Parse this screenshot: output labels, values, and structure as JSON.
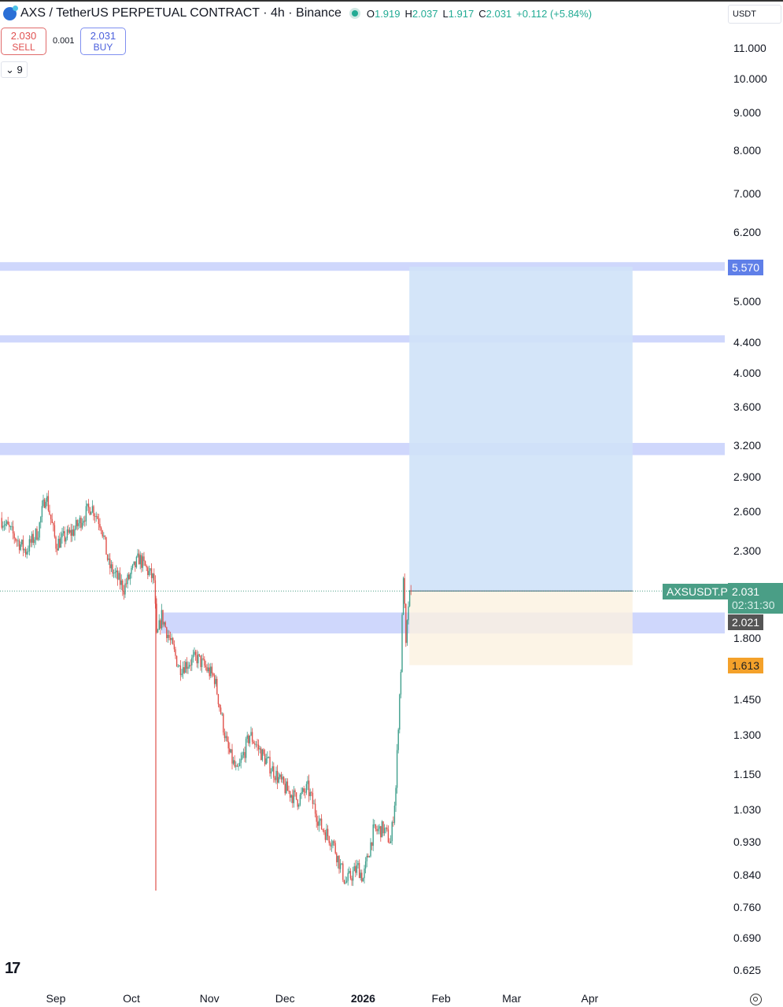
{
  "header": {
    "title": "AXS / TetherUS PERPETUAL CONTRACT · 4h · Binance",
    "open_label": "O",
    "open": "1.919",
    "high_label": "H",
    "high": "2.037",
    "low_label": "L",
    "low": "1.917",
    "close_label": "C",
    "close": "2.031",
    "change": "+0.112 (+5.84%)"
  },
  "trade": {
    "sell_price": "2.030",
    "sell_label": "SELL",
    "spread": "0.001",
    "buy_price": "2.031",
    "buy_label": "BUY"
  },
  "indicators": {
    "count": "9"
  },
  "currency": "USDT",
  "price_axis": {
    "scale": "log",
    "labels": [
      "11.000",
      "10.000",
      "9.000",
      "8.000",
      "7.000",
      "6.200",
      "5.000",
      "4.400",
      "4.000",
      "3.600",
      "3.200",
      "2.900",
      "2.600",
      "2.300",
      "1.800",
      "1.450",
      "1.300",
      "1.150",
      "1.030",
      "0.930",
      "0.840",
      "0.760",
      "0.690",
      "0.625"
    ]
  },
  "time_axis": {
    "labels": [
      "Sep",
      "Oct",
      "Nov",
      "Dec",
      "2026",
      "Feb",
      "Mar",
      "Apr"
    ]
  },
  "tags": {
    "symbol": "AXSUSDT.P",
    "last_price": "2.031",
    "countdown": "02:31:30",
    "crosshair_price": "2.021",
    "target": "5.570",
    "stop": "1.613"
  },
  "colors": {
    "up": "#3f9f8c",
    "down": "#e0504a",
    "zone": "#c7d0fb",
    "profit": "#cfe2f8",
    "loss": "#fbf1e0",
    "last": "#4a9e86",
    "stop": "#f4a12a"
  },
  "chart_data": {
    "type": "candlestick",
    "timeframe": "4h",
    "yscale": "log",
    "ylim": [
      0.625,
      11.0
    ],
    "path": [
      [
        "2025-08-10",
        2.55
      ],
      [
        "2025-08-15",
        2.42
      ],
      [
        "2025-08-20",
        2.3
      ],
      [
        "2025-08-25",
        2.45
      ],
      [
        "2025-08-28",
        2.75
      ],
      [
        "2025-09-01",
        2.35
      ],
      [
        "2025-09-08",
        2.45
      ],
      [
        "2025-09-15",
        2.65
      ],
      [
        "2025-09-19",
        2.5
      ],
      [
        "2025-09-22",
        2.2
      ],
      [
        "2025-09-28",
        2.05
      ],
      [
        "2025-10-04",
        2.25
      ],
      [
        "2025-10-10",
        2.1
      ],
      [
        "2025-10-11",
        1.75
      ],
      [
        "2025-10-13",
        1.88
      ],
      [
        "2025-10-20",
        1.6
      ],
      [
        "2025-10-27",
        1.65
      ],
      [
        "2025-11-03",
        1.55
      ],
      [
        "2025-11-08",
        1.25
      ],
      [
        "2025-11-12",
        1.15
      ],
      [
        "2025-11-17",
        1.3
      ],
      [
        "2025-11-22",
        1.22
      ],
      [
        "2025-12-01",
        1.1
      ],
      [
        "2025-12-06",
        1.06
      ],
      [
        "2025-12-10",
        1.1
      ],
      [
        "2025-12-15",
        0.98
      ],
      [
        "2025-12-20",
        0.93
      ],
      [
        "2025-12-25",
        0.82
      ],
      [
        "2025-12-30",
        0.86
      ],
      [
        "2026-01-01",
        0.83
      ],
      [
        "2026-01-05",
        0.96
      ],
      [
        "2026-01-09",
        0.97
      ],
      [
        "2026-01-12",
        0.93
      ],
      [
        "2026-01-14",
        1.1
      ],
      [
        "2026-01-15",
        1.35
      ],
      [
        "2026-01-16",
        1.6
      ],
      [
        "2026-01-17",
        2.15
      ],
      [
        "2026-01-18",
        1.7
      ],
      [
        "2026-01-19",
        1.95
      ],
      [
        "2026-01-20",
        2.031
      ]
    ],
    "crash_wick": {
      "date": "2025-10-11",
      "low": 0.8
    },
    "zones": [
      [
        5.5,
        5.65
      ],
      [
        4.4,
        4.5
      ],
      [
        3.1,
        3.22
      ],
      [
        1.78,
        1.9
      ]
    ],
    "long_position": {
      "start": "2026-01-20",
      "end": "2026-04-18",
      "entry": 2.031,
      "target": 5.57,
      "stop": 1.613
    }
  }
}
